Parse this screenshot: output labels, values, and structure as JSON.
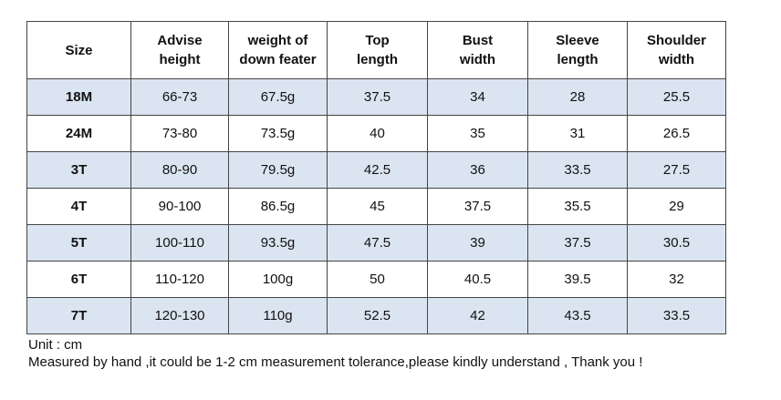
{
  "table": {
    "header": [
      [
        "Size"
      ],
      [
        "Advise",
        "height"
      ],
      [
        "weight of",
        "down feater"
      ],
      [
        "Top",
        "length"
      ],
      [
        "Bust",
        "width"
      ],
      [
        "Sleeve",
        "length"
      ],
      [
        "Shoulder",
        "width"
      ]
    ],
    "rows": [
      [
        "18M",
        "66-73",
        "67.5g",
        "37.5",
        "34",
        "28",
        "25.5"
      ],
      [
        "24M",
        "73-80",
        "73.5g",
        "40",
        "35",
        "31",
        "26.5"
      ],
      [
        "3T",
        "80-90",
        "79.5g",
        "42.5",
        "36",
        "33.5",
        "27.5"
      ],
      [
        "4T",
        "90-100",
        "86.5g",
        "45",
        "37.5",
        "35.5",
        "29"
      ],
      [
        "5T",
        "100-110",
        "93.5g",
        "47.5",
        "39",
        "37.5",
        "30.5"
      ],
      [
        "6T",
        "110-120",
        "100g",
        "50",
        "40.5",
        "39.5",
        "32"
      ],
      [
        "7T",
        "120-130",
        "110g",
        "52.5",
        "42",
        "43.5",
        "33.5"
      ]
    ]
  },
  "notes": [
    "Unit : cm",
    "Measured by hand ,it could be 1-2 cm measurement tolerance,please kindly understand , Thank you !"
  ]
}
